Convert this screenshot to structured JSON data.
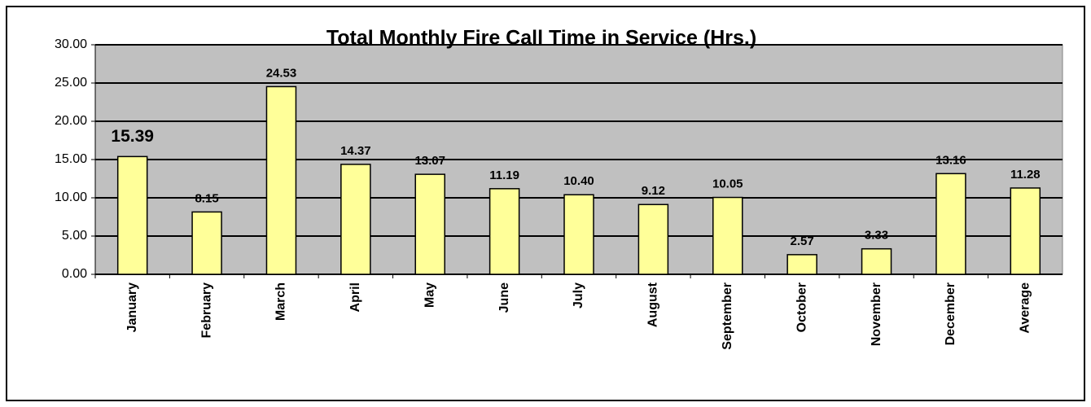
{
  "chart_data": {
    "type": "bar",
    "title": "Total Monthly Fire Call Time in Service (Hrs.)",
    "categories": [
      "January",
      "February",
      "March",
      "April",
      "May",
      "June",
      "July",
      "August",
      "September",
      "October",
      "November",
      "December",
      "Average"
    ],
    "values": [
      15.39,
      8.15,
      24.53,
      14.37,
      13.07,
      11.19,
      10.4,
      9.12,
      10.05,
      2.57,
      3.33,
      13.16,
      11.28
    ],
    "value_labels": [
      "15.39",
      "8.15",
      "24.53",
      "14.37",
      "13.07",
      "11.19",
      "10.40",
      "9.12",
      "10.05",
      "2.57",
      "3.33",
      "13.16",
      "11.28"
    ],
    "color": "#ffff99",
    "ylim": [
      0,
      30
    ],
    "yticks": [
      {
        "value": 0,
        "label": "0.00"
      },
      {
        "value": 5,
        "label": "5.00"
      },
      {
        "value": 10,
        "label": "10.00"
      },
      {
        "value": 15,
        "label": "15.00"
      },
      {
        "value": 20,
        "label": "20.00"
      },
      {
        "value": 25,
        "label": "25.00"
      },
      {
        "value": 30,
        "label": "30.00"
      }
    ],
    "grid": true
  }
}
